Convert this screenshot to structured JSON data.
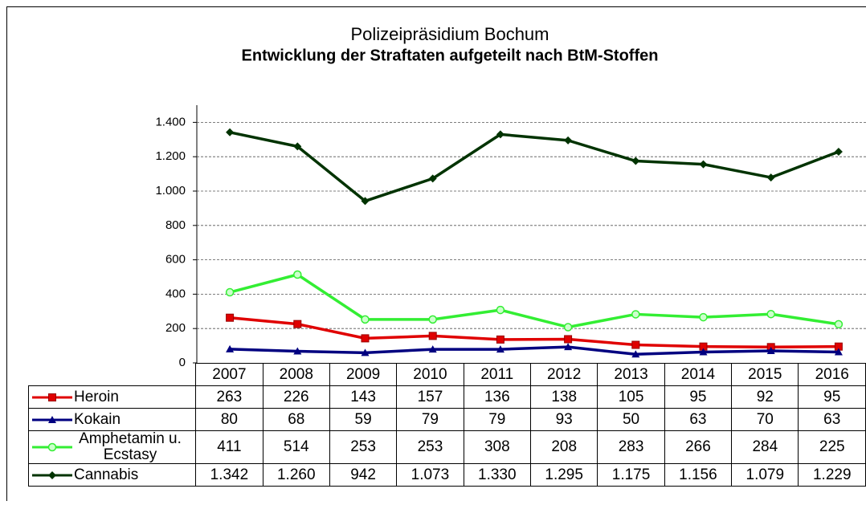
{
  "chart_data": {
    "type": "line",
    "title": "Polizeipräsidium Bochum",
    "subtitle": "Entwicklung der Straftaten aufgeteilt nach BtM-Stoffen",
    "categories": [
      "2007",
      "2008",
      "2009",
      "2010",
      "2011",
      "2012",
      "2013",
      "2014",
      "2015",
      "2016"
    ],
    "series": [
      {
        "name": "Heroin",
        "color": "#e00000",
        "marker": "square",
        "values": [
          263,
          226,
          143,
          157,
          136,
          138,
          105,
          95,
          92,
          95
        ]
      },
      {
        "name": "Kokain",
        "color": "#000080",
        "marker": "triangle",
        "values": [
          80,
          68,
          59,
          79,
          79,
          93,
          50,
          63,
          70,
          63
        ]
      },
      {
        "name": "Amphetamin u. Ecstasy",
        "color": "#33ee33",
        "marker": "circle",
        "values": [
          411,
          514,
          253,
          253,
          308,
          208,
          283,
          266,
          284,
          225
        ]
      },
      {
        "name": "Cannabis",
        "color": "#003300",
        "marker": "diamond",
        "values": [
          1342,
          1260,
          942,
          1073,
          1330,
          1295,
          1175,
          1156,
          1079,
          1229
        ],
        "value_labels": [
          "1.342",
          "1.260",
          "942",
          "1.073",
          "1.330",
          "1.295",
          "1.175",
          "1.156",
          "1.079",
          "1.229"
        ]
      }
    ],
    "ylim": [
      0,
      1500
    ],
    "yticks": [
      0,
      {
        "value": 200,
        "label": "200"
      },
      {
        "value": 400,
        "label": "400"
      },
      {
        "value": 600,
        "label": "600"
      },
      {
        "value": 800,
        "label": "800"
      },
      {
        "value": 1000,
        "label": "1.000"
      },
      {
        "value": 1200,
        "label": "1.200"
      },
      {
        "value": 1400,
        "label": "1.400"
      }
    ],
    "grid": true
  }
}
